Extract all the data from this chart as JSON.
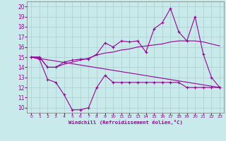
{
  "xlabel": "Windchill (Refroidissement éolien,°C)",
  "bg_color": "#c8eaea",
  "line_color": "#990099",
  "grid_color": "#aacccc",
  "ylim": [
    9.5,
    20.5
  ],
  "xlim": [
    -0.5,
    23.5
  ],
  "yticks": [
    10,
    11,
    12,
    13,
    14,
    15,
    16,
    17,
    18,
    19,
    20
  ],
  "xticks": [
    0,
    1,
    2,
    3,
    4,
    5,
    6,
    7,
    8,
    9,
    10,
    11,
    12,
    13,
    14,
    15,
    16,
    17,
    18,
    19,
    20,
    21,
    22,
    23
  ],
  "line1_x": [
    0,
    1,
    2,
    3,
    4,
    5,
    6,
    7,
    8,
    9,
    10,
    11,
    12,
    13,
    14,
    15,
    16,
    17,
    18,
    19,
    20,
    21,
    22,
    23
  ],
  "line1_y": [
    15.0,
    15.0,
    14.0,
    14.0,
    14.5,
    14.7,
    14.8,
    14.8,
    15.3,
    16.4,
    16.0,
    16.6,
    16.5,
    16.6,
    15.5,
    17.8,
    18.4,
    19.8,
    17.5,
    16.6,
    19.0,
    15.3,
    13.0,
    12.0
  ],
  "line2_x": [
    0,
    23
  ],
  "line2_y": [
    15.0,
    12.0
  ],
  "line2b_x": [
    0,
    1,
    2,
    3,
    4,
    5,
    6,
    7,
    8,
    9,
    10,
    11,
    12,
    13,
    14,
    15,
    16,
    17,
    18,
    19,
    20,
    21,
    22,
    23
  ],
  "line2b_y": [
    15.0,
    15.0,
    14.0,
    14.0,
    14.3,
    14.5,
    14.7,
    14.9,
    15.2,
    15.4,
    15.5,
    15.7,
    15.8,
    16.0,
    16.1,
    16.2,
    16.3,
    16.5,
    16.6,
    16.6,
    16.6,
    16.5,
    16.3,
    16.1
  ],
  "line3_x": [
    0,
    1,
    2,
    3,
    4,
    5,
    6,
    7,
    8,
    9,
    10,
    11,
    12,
    13,
    14,
    15,
    16,
    17,
    18,
    19,
    20,
    21,
    22,
    23
  ],
  "line3_y": [
    15.0,
    14.8,
    12.8,
    12.5,
    11.3,
    9.8,
    9.8,
    10.0,
    12.0,
    13.2,
    12.5,
    12.5,
    12.5,
    12.5,
    12.5,
    12.5,
    12.5,
    12.5,
    12.5,
    12.0,
    12.0,
    12.0,
    12.0,
    12.0
  ]
}
